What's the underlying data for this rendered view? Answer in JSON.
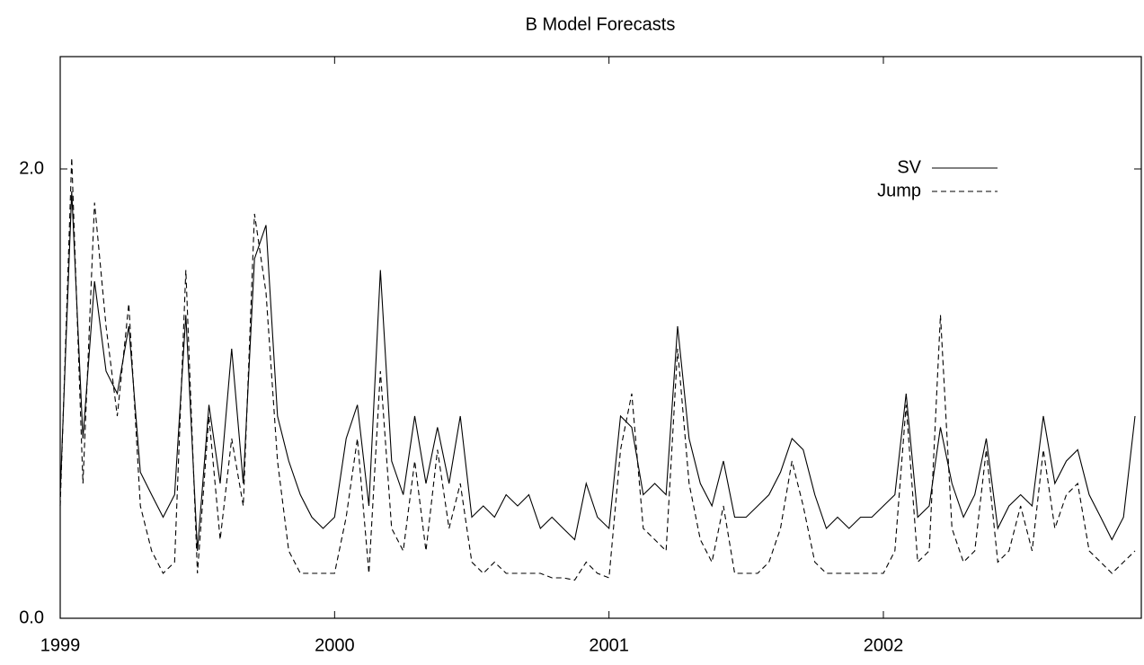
{
  "chart_data": {
    "type": "line",
    "title": "B Model Forecasts",
    "x": [
      1999,
      1999.042,
      1999.083,
      1999.125,
      1999.167,
      1999.208,
      1999.25,
      1999.292,
      1999.333,
      1999.375,
      1999.417,
      1999.458,
      1999.5,
      1999.542,
      1999.583,
      1999.625,
      1999.667,
      1999.708,
      1999.75,
      1999.792,
      1999.833,
      1999.875,
      1999.917,
      1999.958,
      2000,
      2000.042,
      2000.083,
      2000.125,
      2000.167,
      2000.208,
      2000.25,
      2000.292,
      2000.333,
      2000.375,
      2000.417,
      2000.458,
      2000.5,
      2000.542,
      2000.583,
      2000.625,
      2000.667,
      2000.708,
      2000.75,
      2000.792,
      2000.833,
      2000.875,
      2000.917,
      2000.958,
      2001,
      2001.042,
      2001.083,
      2001.125,
      2001.167,
      2001.208,
      2001.25,
      2001.292,
      2001.333,
      2001.375,
      2001.417,
      2001.458,
      2001.5,
      2001.542,
      2001.583,
      2001.625,
      2001.667,
      2001.708,
      2001.75,
      2001.792,
      2001.833,
      2001.875,
      2001.917,
      2001.958,
      2002,
      2002.042,
      2002.083,
      2002.125,
      2002.167,
      2002.208,
      2002.25,
      2002.292,
      2002.333,
      2002.375,
      2002.417,
      2002.458,
      2002.5,
      2002.542,
      2002.583,
      2002.625,
      2002.667,
      2002.708,
      2002.75,
      2002.792,
      2002.833,
      2002.875,
      2002.917
    ],
    "series": [
      {
        "name": "SV",
        "color": "#000000",
        "line_style": "solid",
        "values": [
          0.55,
          1.9,
          0.8,
          1.5,
          1.1,
          1.0,
          1.3,
          0.65,
          0.55,
          0.45,
          0.55,
          1.35,
          0.3,
          0.95,
          0.6,
          1.2,
          0.6,
          1.6,
          1.75,
          0.9,
          0.7,
          0.55,
          0.45,
          0.4,
          0.45,
          0.8,
          0.95,
          0.5,
          1.55,
          0.7,
          0.55,
          0.9,
          0.6,
          0.85,
          0.6,
          0.9,
          0.45,
          0.5,
          0.45,
          0.55,
          0.5,
          0.55,
          0.4,
          0.45,
          0.4,
          0.35,
          0.6,
          0.45,
          0.4,
          0.9,
          0.85,
          0.55,
          0.6,
          0.55,
          1.3,
          0.8,
          0.6,
          0.5,
          0.7,
          0.45,
          0.45,
          0.5,
          0.55,
          0.65,
          0.8,
          0.75,
          0.55,
          0.4,
          0.45,
          0.4,
          0.45,
          0.45,
          0.5,
          0.55,
          1.0,
          0.45,
          0.5,
          0.85,
          0.6,
          0.45,
          0.55,
          0.8,
          0.4,
          0.5,
          0.55,
          0.5,
          0.9,
          0.6,
          0.7,
          0.75,
          0.55,
          0.45,
          0.35,
          0.45,
          0.9
        ]
      },
      {
        "name": "Jump",
        "color": "#000000",
        "line_style": "dashed",
        "values": [
          0.5,
          2.05,
          0.6,
          1.85,
          1.3,
          0.9,
          1.4,
          0.5,
          0.3,
          0.2,
          0.25,
          1.55,
          0.2,
          0.9,
          0.35,
          0.8,
          0.5,
          1.8,
          1.45,
          0.7,
          0.3,
          0.2,
          0.2,
          0.2,
          0.2,
          0.45,
          0.8,
          0.2,
          1.1,
          0.4,
          0.3,
          0.7,
          0.3,
          0.75,
          0.4,
          0.6,
          0.25,
          0.2,
          0.25,
          0.2,
          0.2,
          0.2,
          0.2,
          0.18,
          0.18,
          0.17,
          0.25,
          0.2,
          0.18,
          0.75,
          1.0,
          0.4,
          0.35,
          0.3,
          1.2,
          0.6,
          0.35,
          0.25,
          0.5,
          0.2,
          0.2,
          0.2,
          0.25,
          0.4,
          0.7,
          0.5,
          0.25,
          0.2,
          0.2,
          0.2,
          0.2,
          0.2,
          0.2,
          0.3,
          0.95,
          0.25,
          0.3,
          1.35,
          0.4,
          0.25,
          0.3,
          0.75,
          0.25,
          0.3,
          0.5,
          0.3,
          0.75,
          0.4,
          0.55,
          0.6,
          0.3,
          0.25,
          0.2,
          0.25,
          0.3
        ]
      }
    ],
    "xlim": [
      1999,
      2002.94
    ],
    "xticks": [
      1999,
      2000,
      2001,
      2002
    ],
    "ylim": [
      0,
      2.5
    ],
    "yticks": [
      {
        "value": 0,
        "label": "0.0"
      },
      {
        "value": 2,
        "label": "2.0"
      }
    ],
    "legend": "top-right"
  }
}
